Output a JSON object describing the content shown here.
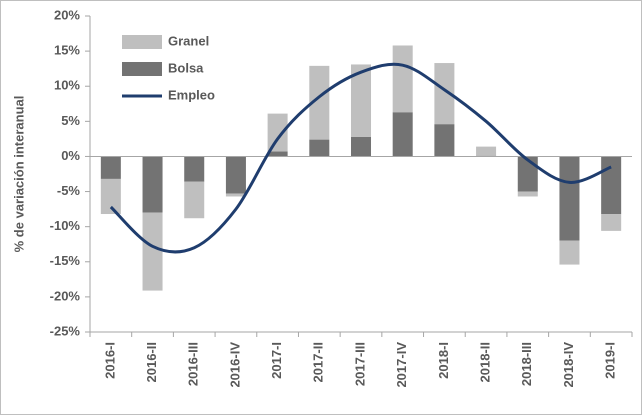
{
  "chart_data": {
    "type": "bar",
    "stacked": true,
    "y_label": "% de variación interanual",
    "categories": [
      "2016-I",
      "2016-II",
      "2016-III",
      "2016-IV",
      "2017-I",
      "2017-II",
      "2017-III",
      "2017-IV",
      "2018-I",
      "2018-II",
      "2018-III",
      "2018-IV",
      "2019-I"
    ],
    "series": [
      {
        "name": "Granel",
        "type": "bar",
        "color": "#bfbfbf",
        "values": [
          -5.0,
          -11.1,
          -5.2,
          -0.4,
          5.4,
          10.5,
          10.3,
          9.5,
          8.7,
          1.3,
          -0.7,
          -3.4,
          -2.4
        ]
      },
      {
        "name": "Bolsa",
        "type": "bar",
        "color": "#737373",
        "values": [
          -3.2,
          -8.0,
          -3.6,
          -5.3,
          0.7,
          2.4,
          2.8,
          6.3,
          4.6,
          0.1,
          -5.0,
          -12.0,
          -8.2
        ]
      },
      {
        "name": "Empleo",
        "type": "line",
        "color": "#1f3d6e",
        "values": [
          -7.2,
          -12.8,
          -13.0,
          -7.5,
          2.5,
          8.5,
          12.0,
          13.0,
          9.5,
          5.0,
          -0.5,
          -3.7,
          -1.5
        ]
      }
    ],
    "ylim": [
      -25,
      20
    ],
    "yticks": [
      {
        "value": -25,
        "label": "-25%"
      },
      {
        "value": -20,
        "label": "-20%"
      },
      {
        "value": -15,
        "label": "-15%"
      },
      {
        "value": -10,
        "label": "-10%"
      },
      {
        "value": -5,
        "label": "-5%"
      },
      {
        "value": 0,
        "label": "0%"
      },
      {
        "value": 5,
        "label": "5%"
      },
      {
        "value": 10,
        "label": "10%"
      },
      {
        "value": 15,
        "label": "15%"
      },
      {
        "value": 20,
        "label": "20%"
      }
    ],
    "legend": "upper left"
  }
}
